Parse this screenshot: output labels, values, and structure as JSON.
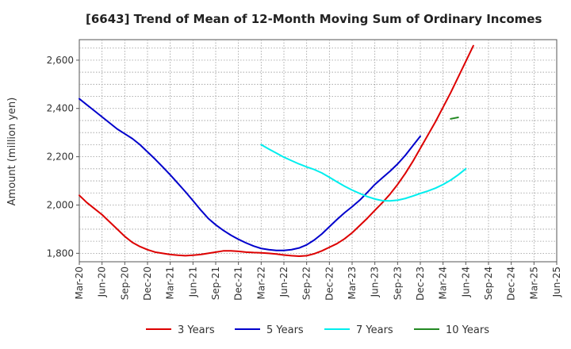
{
  "chart_data": {
    "type": "line",
    "title": "[6643]  Trend of Mean of 12-Month Moving Sum of Ordinary Incomes",
    "xlabel": "",
    "ylabel": "Amount (million yen)",
    "ylim": [
      1765,
      2685
    ],
    "grid": true,
    "legend_position": "bottom",
    "x_tick_labels": [
      "Mar-20",
      "Jun-20",
      "Sep-20",
      "Dec-20",
      "Mar-21",
      "Jun-21",
      "Sep-21",
      "Dec-21",
      "Mar-22",
      "Jun-22",
      "Sep-22",
      "Dec-22",
      "Mar-23",
      "Jun-23",
      "Sep-23",
      "Dec-23",
      "Mar-24",
      "Jun-24",
      "Sep-24",
      "Dec-24",
      "Mar-25",
      "Jun-25"
    ],
    "y_ticks": [
      1800,
      2000,
      2200,
      2400,
      2600
    ],
    "y_tick_labels": [
      "1,800",
      "2,000",
      "2,200",
      "2,400",
      "2,600"
    ],
    "series": [
      {
        "name": "3 Years",
        "color": "#dd0000",
        "start_index": 0,
        "values": [
          2040,
          2010,
          1985,
          1960,
          1930,
          1900,
          1870,
          1845,
          1828,
          1815,
          1805,
          1800,
          1795,
          1792,
          1790,
          1792,
          1795,
          1800,
          1805,
          1810,
          1810,
          1808,
          1805,
          1803,
          1802,
          1800,
          1797,
          1793,
          1790,
          1788,
          1790,
          1798,
          1810,
          1825,
          1840,
          1860,
          1885,
          1915,
          1945,
          1978,
          2010,
          2045,
          2085,
          2130,
          2180,
          2235,
          2290,
          2345,
          2405,
          2465,
          2530,
          2595,
          2660
        ]
      },
      {
        "name": "5 Years",
        "color": "#0000cc",
        "start_index": 0,
        "values": [
          2440,
          2415,
          2390,
          2365,
          2340,
          2315,
          2295,
          2275,
          2250,
          2220,
          2190,
          2158,
          2125,
          2090,
          2055,
          2018,
          1980,
          1945,
          1918,
          1895,
          1875,
          1858,
          1843,
          1830,
          1820,
          1815,
          1812,
          1812,
          1815,
          1822,
          1835,
          1855,
          1880,
          1910,
          1940,
          1968,
          1993,
          2020,
          2052,
          2085,
          2113,
          2140,
          2170,
          2205,
          2245,
          2285
        ]
      },
      {
        "name": "7 Years",
        "color": "#00eeee",
        "start_index": 24,
        "values": [
          2250,
          2232,
          2215,
          2198,
          2184,
          2170,
          2158,
          2147,
          2133,
          2115,
          2096,
          2078,
          2062,
          2048,
          2035,
          2025,
          2018,
          2017,
          2020,
          2027,
          2037,
          2048,
          2058,
          2070,
          2085,
          2103,
          2125,
          2150
        ]
      },
      {
        "name": "10 Years",
        "color": "#228822",
        "start_index": 49,
        "values": [
          2357,
          2363
        ]
      }
    ]
  }
}
